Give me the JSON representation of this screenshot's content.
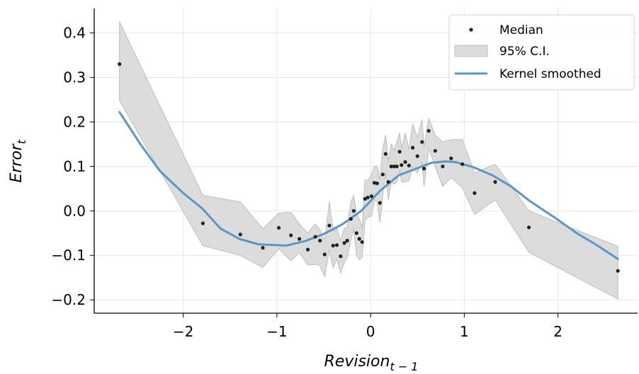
{
  "chart_data": {
    "type": "scatter",
    "xlabel": "Revision",
    "xlabel_sub": "t − 1",
    "ylabel": "Error",
    "ylabel_sub": "t",
    "xlim": [
      -2.95,
      2.85
    ],
    "ylim": [
      -0.23,
      0.455
    ],
    "x_ticks": [
      {
        "value": -2,
        "label": "−2"
      },
      {
        "value": -1,
        "label": "−1"
      },
      {
        "value": 0,
        "label": "0"
      },
      {
        "value": 1,
        "label": "1"
      },
      {
        "value": 2,
        "label": "2"
      }
    ],
    "y_ticks": [
      {
        "value": -0.2,
        "label": "−0.2"
      },
      {
        "value": -0.1,
        "label": "−0.1"
      },
      {
        "value": 0.0,
        "label": "0.0"
      },
      {
        "value": 0.1,
        "label": "0.1"
      },
      {
        "value": 0.2,
        "label": "0.2"
      },
      {
        "value": 0.3,
        "label": "0.3"
      },
      {
        "value": 0.4,
        "label": "0.4"
      }
    ],
    "grid": true,
    "legend_position": "top-right",
    "legend": [
      {
        "label": "Median",
        "kind": "marker"
      },
      {
        "label": "95% C.I.",
        "kind": "band"
      },
      {
        "label": "Kernel smoothed",
        "kind": "line"
      }
    ],
    "colors": {
      "median": "#222222",
      "band_fill": "#dcdcdc",
      "band_edge": "#c4c4c4",
      "smooth": "#5a97c6",
      "grid": "#e6e6e6"
    },
    "median": [
      [
        -2.68,
        0.33
      ],
      [
        -1.79,
        -0.028
      ],
      [
        -1.39,
        -0.053
      ],
      [
        -1.15,
        -0.083
      ],
      [
        -0.98,
        -0.038
      ],
      [
        -0.85,
        -0.055
      ],
      [
        -0.76,
        -0.063
      ],
      [
        -0.67,
        -0.087
      ],
      [
        -0.59,
        -0.058
      ],
      [
        -0.54,
        -0.067
      ],
      [
        -0.49,
        -0.098
      ],
      [
        -0.44,
        -0.033
      ],
      [
        -0.4,
        -0.078
      ],
      [
        -0.36,
        -0.077
      ],
      [
        -0.32,
        -0.102
      ],
      [
        -0.28,
        -0.072
      ],
      [
        -0.25,
        -0.067
      ],
      [
        -0.21,
        -0.018
      ],
      [
        -0.18,
        0.0
      ],
      [
        -0.15,
        -0.05
      ],
      [
        -0.12,
        -0.063
      ],
      [
        -0.09,
        -0.07
      ],
      [
        -0.06,
        0.027
      ],
      [
        -0.03,
        0.03
      ],
      [
        0.01,
        0.033
      ],
      [
        0.04,
        0.063
      ],
      [
        0.07,
        0.062
      ],
      [
        0.1,
        0.018
      ],
      [
        0.13,
        0.082
      ],
      [
        0.16,
        0.128
      ],
      [
        0.19,
        0.065
      ],
      [
        0.22,
        0.1
      ],
      [
        0.25,
        0.1
      ],
      [
        0.28,
        0.1
      ],
      [
        0.31,
        0.133
      ],
      [
        0.33,
        0.103
      ],
      [
        0.37,
        0.11
      ],
      [
        0.41,
        0.102
      ],
      [
        0.45,
        0.142
      ],
      [
        0.5,
        0.123
      ],
      [
        0.55,
        0.155
      ],
      [
        0.57,
        0.095
      ],
      [
        0.62,
        0.18
      ],
      [
        0.69,
        0.135
      ],
      [
        0.77,
        0.1
      ],
      [
        0.86,
        0.118
      ],
      [
        0.98,
        0.105
      ],
      [
        1.11,
        0.04
      ],
      [
        1.33,
        0.065
      ],
      [
        1.69,
        -0.037
      ],
      [
        2.64,
        -0.135
      ]
    ],
    "ci_upper": [
      [
        -2.68,
        0.425
      ],
      [
        -1.79,
        0.035
      ],
      [
        -1.39,
        0.02
      ],
      [
        -1.15,
        -0.04
      ],
      [
        -0.98,
        -0.005
      ],
      [
        -0.85,
        -0.003
      ],
      [
        -0.76,
        -0.03
      ],
      [
        -0.67,
        -0.05
      ],
      [
        -0.59,
        -0.03
      ],
      [
        -0.54,
        -0.043
      ],
      [
        -0.49,
        -0.067
      ],
      [
        -0.44,
        0.02
      ],
      [
        -0.4,
        -0.045
      ],
      [
        -0.36,
        -0.04
      ],
      [
        -0.32,
        -0.068
      ],
      [
        -0.28,
        -0.038
      ],
      [
        -0.25,
        -0.038
      ],
      [
        -0.21,
        0.02
      ],
      [
        -0.18,
        0.035
      ],
      [
        -0.15,
        -0.005
      ],
      [
        -0.12,
        -0.018
      ],
      [
        -0.09,
        -0.04
      ],
      [
        -0.06,
        0.07
      ],
      [
        -0.03,
        0.068
      ],
      [
        0.01,
        0.082
      ],
      [
        0.04,
        0.1
      ],
      [
        0.07,
        0.1
      ],
      [
        0.1,
        0.07
      ],
      [
        0.13,
        0.14
      ],
      [
        0.16,
        0.17
      ],
      [
        0.19,
        0.11
      ],
      [
        0.22,
        0.15
      ],
      [
        0.25,
        0.135
      ],
      [
        0.28,
        0.155
      ],
      [
        0.31,
        0.175
      ],
      [
        0.33,
        0.14
      ],
      [
        0.37,
        0.175
      ],
      [
        0.41,
        0.138
      ],
      [
        0.45,
        0.195
      ],
      [
        0.5,
        0.165
      ],
      [
        0.55,
        0.205
      ],
      [
        0.57,
        0.142
      ],
      [
        0.62,
        0.208
      ],
      [
        0.69,
        0.17
      ],
      [
        0.77,
        0.155
      ],
      [
        0.86,
        0.16
      ],
      [
        0.98,
        0.16
      ],
      [
        1.11,
        0.085
      ],
      [
        1.33,
        0.105
      ],
      [
        1.69,
        0.0
      ],
      [
        2.64,
        -0.08
      ]
    ],
    "ci_lower": [
      [
        -2.68,
        0.248
      ],
      [
        -1.79,
        -0.078
      ],
      [
        -1.39,
        -0.1
      ],
      [
        -1.15,
        -0.127
      ],
      [
        -0.98,
        -0.085
      ],
      [
        -0.85,
        -0.112
      ],
      [
        -0.76,
        -0.093
      ],
      [
        -0.67,
        -0.122
      ],
      [
        -0.59,
        -0.12
      ],
      [
        -0.54,
        -0.123
      ],
      [
        -0.49,
        -0.148
      ],
      [
        -0.44,
        -0.087
      ],
      [
        -0.4,
        -0.128
      ],
      [
        -0.36,
        -0.108
      ],
      [
        -0.32,
        -0.14
      ],
      [
        -0.28,
        -0.115
      ],
      [
        -0.25,
        -0.105
      ],
      [
        -0.21,
        -0.065
      ],
      [
        -0.18,
        -0.04
      ],
      [
        -0.15,
        -0.1
      ],
      [
        -0.12,
        -0.11
      ],
      [
        -0.09,
        -0.105
      ],
      [
        -0.06,
        -0.02
      ],
      [
        -0.03,
        -0.015
      ],
      [
        0.01,
        -0.01
      ],
      [
        0.04,
        0.025
      ],
      [
        0.07,
        0.02
      ],
      [
        0.1,
        -0.025
      ],
      [
        0.13,
        0.035
      ],
      [
        0.16,
        0.085
      ],
      [
        0.19,
        0.025
      ],
      [
        0.22,
        0.065
      ],
      [
        0.25,
        0.06
      ],
      [
        0.28,
        0.065
      ],
      [
        0.31,
        0.092
      ],
      [
        0.33,
        0.065
      ],
      [
        0.37,
        0.065
      ],
      [
        0.41,
        0.068
      ],
      [
        0.45,
        0.1
      ],
      [
        0.5,
        0.085
      ],
      [
        0.55,
        0.11
      ],
      [
        0.57,
        0.055
      ],
      [
        0.62,
        0.142
      ],
      [
        0.69,
        0.1
      ],
      [
        0.77,
        0.055
      ],
      [
        0.86,
        0.075
      ],
      [
        0.98,
        0.052
      ],
      [
        1.11,
        -0.008
      ],
      [
        1.33,
        0.025
      ],
      [
        1.69,
        -0.093
      ],
      [
        2.64,
        -0.198
      ]
    ],
    "kernel_smoothed": [
      [
        -2.68,
        0.222
      ],
      [
        -2.45,
        0.148
      ],
      [
        -2.25,
        0.09
      ],
      [
        -2.0,
        0.04
      ],
      [
        -1.8,
        0.006
      ],
      [
        -1.6,
        -0.04
      ],
      [
        -1.4,
        -0.063
      ],
      [
        -1.2,
        -0.075
      ],
      [
        -0.9,
        -0.078
      ],
      [
        -0.7,
        -0.068
      ],
      [
        -0.5,
        -0.052
      ],
      [
        -0.3,
        -0.03
      ],
      [
        -0.1,
        0.0
      ],
      [
        0.1,
        0.045
      ],
      [
        0.3,
        0.08
      ],
      [
        0.5,
        0.096
      ],
      [
        0.65,
        0.108
      ],
      [
        0.8,
        0.111
      ],
      [
        0.9,
        0.11
      ],
      [
        1.1,
        0.098
      ],
      [
        1.3,
        0.08
      ],
      [
        1.5,
        0.055
      ],
      [
        1.7,
        0.022
      ],
      [
        2.0,
        -0.02
      ],
      [
        2.2,
        -0.05
      ],
      [
        2.4,
        -0.075
      ],
      [
        2.64,
        -0.108
      ]
    ]
  }
}
